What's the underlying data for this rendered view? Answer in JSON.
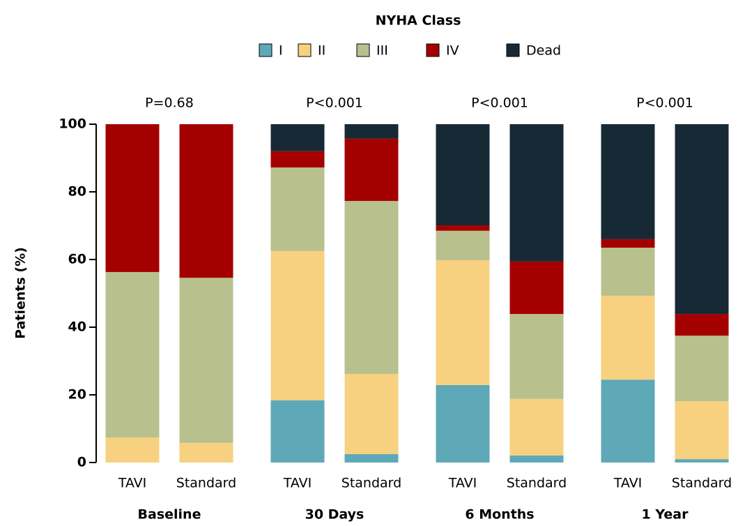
{
  "chart_data": {
    "type": "stacked_bar",
    "legend_title": "NYHA Class",
    "y_label": "Patients (%)",
    "categories": [
      "TAVI",
      "Standard",
      "TAVI",
      "Standard",
      "TAVI",
      "Standard",
      "TAVI",
      "Standard"
    ],
    "groups": [
      "Baseline",
      "30 Days",
      "6 Months",
      "1 Year"
    ],
    "group_annotations": [
      "P=0.68",
      "P<0.001",
      "P<0.001",
      "P<0.001"
    ],
    "series": [
      {
        "name": "I",
        "color": "#5fa8b8",
        "values": [
          0,
          0,
          18.4,
          2.5,
          22.9,
          2.1,
          24.5,
          1.0
        ]
      },
      {
        "name": "II",
        "color": "#f7d17f",
        "values": [
          7.4,
          5.8,
          44.1,
          23.7,
          36.9,
          16.7,
          24.8,
          17.1
        ]
      },
      {
        "name": "III",
        "color": "#b8c08e",
        "values": [
          48.9,
          48.8,
          24.7,
          51.1,
          8.7,
          25.1,
          14.2,
          19.4
        ]
      },
      {
        "name": "IV",
        "color": "#a50000",
        "values": [
          43.7,
          45.4,
          4.8,
          18.4,
          1.6,
          15.5,
          2.5,
          6.4
        ]
      },
      {
        "name": "Dead",
        "color": "#172935",
        "values": [
          0,
          0,
          8.0,
          4.3,
          29.9,
          40.6,
          34.0,
          56.1
        ]
      }
    ],
    "ylim": [
      0,
      100
    ],
    "yticks": [
      0,
      20,
      40,
      60,
      80,
      100
    ]
  }
}
